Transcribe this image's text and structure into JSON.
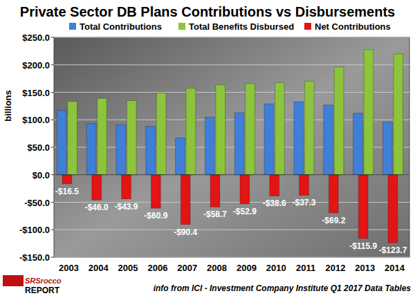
{
  "chart_data": {
    "type": "bar",
    "title": "Private Sector DB Plans Contributions vs Disbursements",
    "y_label": "billions",
    "annotations": [
      "SRSrocco",
      "REPORT",
      "info from ICI - Investment Company Institute Q1 2017 Data Tables"
    ],
    "categories": [
      "2003",
      "2004",
      "2005",
      "2006",
      "2007",
      "2008",
      "2009",
      "2010",
      "2011",
      "2012",
      "2013",
      "2014"
    ],
    "series": [
      {
        "name": "Total Contributions",
        "color": "#3f7fd8",
        "values": [
          117,
          93,
          91,
          88,
          67,
          105,
          113,
          129,
          133,
          127,
          112,
          96
        ]
      },
      {
        "name": "Total Benefits Disbursed",
        "color": "#8cc43c",
        "values": [
          133.5,
          139,
          134.9,
          148.9,
          157.4,
          163.7,
          165.9,
          167.6,
          170.3,
          196.2,
          227.9,
          219.7
        ]
      },
      {
        "name": "Net Contributions",
        "color": "#e31414",
        "data_labels": true,
        "values": [
          -16.5,
          -46.0,
          -43.9,
          -60.9,
          -90.4,
          -58.7,
          -52.9,
          -38.6,
          -37.3,
          -69.2,
          -115.9,
          -123.7
        ],
        "value_labels": [
          "-$16.5",
          "-$46.0",
          "-$43.9",
          "-$60.9",
          "-$90.4",
          "-$58.7",
          "-$52.9",
          "-$38.6",
          "-$37.3",
          "-$69.2",
          "-$115.9",
          "-$123.7"
        ]
      }
    ],
    "ylim": [
      -150,
      250
    ],
    "yticks": [
      {
        "value": -150,
        "label": "-$150.0"
      },
      {
        "value": -100,
        "label": "-$100.0"
      },
      {
        "value": -50,
        "label": "-$50.0"
      },
      {
        "value": 0,
        "label": "$0.0"
      },
      {
        "value": 50,
        "label": "$50.0"
      },
      {
        "value": 100,
        "label": "$100.0"
      },
      {
        "value": 150,
        "label": "$150.0"
      },
      {
        "value": 200,
        "label": "$200.0"
      },
      {
        "value": 250,
        "label": "$250.0"
      }
    ],
    "grid": true,
    "legend": "top"
  }
}
